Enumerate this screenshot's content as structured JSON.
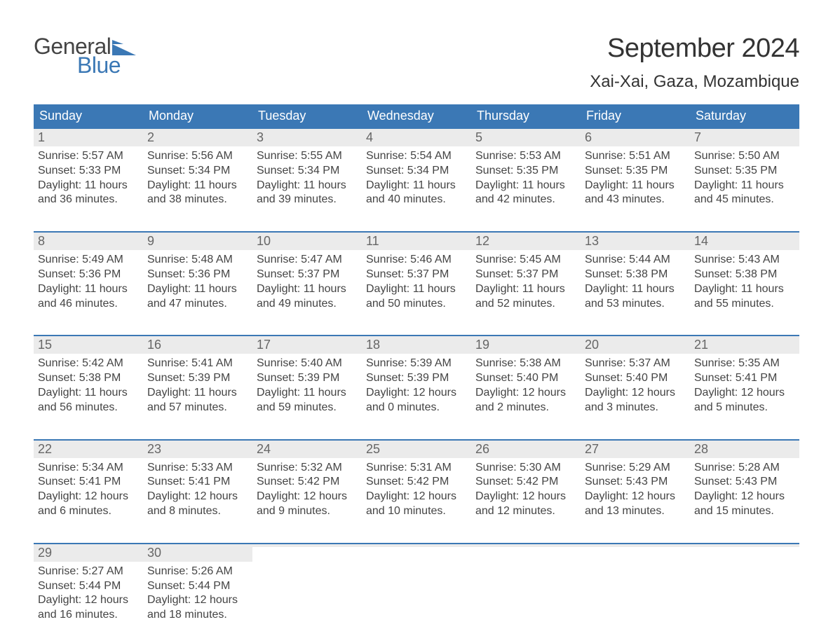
{
  "logo": {
    "text1": "General",
    "text2": "Blue",
    "flag_color": "#3b78b5"
  },
  "title": "September 2024",
  "location": "Xai-Xai, Gaza, Mozambique",
  "colors": {
    "header_bg": "#3b78b5",
    "header_text": "#ffffff",
    "strip_bg": "#ebebeb",
    "text": "#444444",
    "rule": "#3b78b5",
    "background": "#ffffff"
  },
  "typography": {
    "title_fontsize": 38,
    "location_fontsize": 24,
    "dow_fontsize": 18,
    "daynum_fontsize": 18,
    "body_fontsize": 16
  },
  "layout": {
    "columns": 7,
    "rows": 5
  },
  "days_of_week": [
    "Sunday",
    "Monday",
    "Tuesday",
    "Wednesday",
    "Thursday",
    "Friday",
    "Saturday"
  ],
  "weeks": [
    [
      {
        "n": "1",
        "sunrise": "Sunrise: 5:57 AM",
        "sunset": "Sunset: 5:33 PM",
        "daylight": "Daylight: 11 hours and 36 minutes."
      },
      {
        "n": "2",
        "sunrise": "Sunrise: 5:56 AM",
        "sunset": "Sunset: 5:34 PM",
        "daylight": "Daylight: 11 hours and 38 minutes."
      },
      {
        "n": "3",
        "sunrise": "Sunrise: 5:55 AM",
        "sunset": "Sunset: 5:34 PM",
        "daylight": "Daylight: 11 hours and 39 minutes."
      },
      {
        "n": "4",
        "sunrise": "Sunrise: 5:54 AM",
        "sunset": "Sunset: 5:34 PM",
        "daylight": "Daylight: 11 hours and 40 minutes."
      },
      {
        "n": "5",
        "sunrise": "Sunrise: 5:53 AM",
        "sunset": "Sunset: 5:35 PM",
        "daylight": "Daylight: 11 hours and 42 minutes."
      },
      {
        "n": "6",
        "sunrise": "Sunrise: 5:51 AM",
        "sunset": "Sunset: 5:35 PM",
        "daylight": "Daylight: 11 hours and 43 minutes."
      },
      {
        "n": "7",
        "sunrise": "Sunrise: 5:50 AM",
        "sunset": "Sunset: 5:35 PM",
        "daylight": "Daylight: 11 hours and 45 minutes."
      }
    ],
    [
      {
        "n": "8",
        "sunrise": "Sunrise: 5:49 AM",
        "sunset": "Sunset: 5:36 PM",
        "daylight": "Daylight: 11 hours and 46 minutes."
      },
      {
        "n": "9",
        "sunrise": "Sunrise: 5:48 AM",
        "sunset": "Sunset: 5:36 PM",
        "daylight": "Daylight: 11 hours and 47 minutes."
      },
      {
        "n": "10",
        "sunrise": "Sunrise: 5:47 AM",
        "sunset": "Sunset: 5:37 PM",
        "daylight": "Daylight: 11 hours and 49 minutes."
      },
      {
        "n": "11",
        "sunrise": "Sunrise: 5:46 AM",
        "sunset": "Sunset: 5:37 PM",
        "daylight": "Daylight: 11 hours and 50 minutes."
      },
      {
        "n": "12",
        "sunrise": "Sunrise: 5:45 AM",
        "sunset": "Sunset: 5:37 PM",
        "daylight": "Daylight: 11 hours and 52 minutes."
      },
      {
        "n": "13",
        "sunrise": "Sunrise: 5:44 AM",
        "sunset": "Sunset: 5:38 PM",
        "daylight": "Daylight: 11 hours and 53 minutes."
      },
      {
        "n": "14",
        "sunrise": "Sunrise: 5:43 AM",
        "sunset": "Sunset: 5:38 PM",
        "daylight": "Daylight: 11 hours and 55 minutes."
      }
    ],
    [
      {
        "n": "15",
        "sunrise": "Sunrise: 5:42 AM",
        "sunset": "Sunset: 5:38 PM",
        "daylight": "Daylight: 11 hours and 56 minutes."
      },
      {
        "n": "16",
        "sunrise": "Sunrise: 5:41 AM",
        "sunset": "Sunset: 5:39 PM",
        "daylight": "Daylight: 11 hours and 57 minutes."
      },
      {
        "n": "17",
        "sunrise": "Sunrise: 5:40 AM",
        "sunset": "Sunset: 5:39 PM",
        "daylight": "Daylight: 11 hours and 59 minutes."
      },
      {
        "n": "18",
        "sunrise": "Sunrise: 5:39 AM",
        "sunset": "Sunset: 5:39 PM",
        "daylight": "Daylight: 12 hours and 0 minutes."
      },
      {
        "n": "19",
        "sunrise": "Sunrise: 5:38 AM",
        "sunset": "Sunset: 5:40 PM",
        "daylight": "Daylight: 12 hours and 2 minutes."
      },
      {
        "n": "20",
        "sunrise": "Sunrise: 5:37 AM",
        "sunset": "Sunset: 5:40 PM",
        "daylight": "Daylight: 12 hours and 3 minutes."
      },
      {
        "n": "21",
        "sunrise": "Sunrise: 5:35 AM",
        "sunset": "Sunset: 5:41 PM",
        "daylight": "Daylight: 12 hours and 5 minutes."
      }
    ],
    [
      {
        "n": "22",
        "sunrise": "Sunrise: 5:34 AM",
        "sunset": "Sunset: 5:41 PM",
        "daylight": "Daylight: 12 hours and 6 minutes."
      },
      {
        "n": "23",
        "sunrise": "Sunrise: 5:33 AM",
        "sunset": "Sunset: 5:41 PM",
        "daylight": "Daylight: 12 hours and 8 minutes."
      },
      {
        "n": "24",
        "sunrise": "Sunrise: 5:32 AM",
        "sunset": "Sunset: 5:42 PM",
        "daylight": "Daylight: 12 hours and 9 minutes."
      },
      {
        "n": "25",
        "sunrise": "Sunrise: 5:31 AM",
        "sunset": "Sunset: 5:42 PM",
        "daylight": "Daylight: 12 hours and 10 minutes."
      },
      {
        "n": "26",
        "sunrise": "Sunrise: 5:30 AM",
        "sunset": "Sunset: 5:42 PM",
        "daylight": "Daylight: 12 hours and 12 minutes."
      },
      {
        "n": "27",
        "sunrise": "Sunrise: 5:29 AM",
        "sunset": "Sunset: 5:43 PM",
        "daylight": "Daylight: 12 hours and 13 minutes."
      },
      {
        "n": "28",
        "sunrise": "Sunrise: 5:28 AM",
        "sunset": "Sunset: 5:43 PM",
        "daylight": "Daylight: 12 hours and 15 minutes."
      }
    ],
    [
      {
        "n": "29",
        "sunrise": "Sunrise: 5:27 AM",
        "sunset": "Sunset: 5:44 PM",
        "daylight": "Daylight: 12 hours and 16 minutes."
      },
      {
        "n": "30",
        "sunrise": "Sunrise: 5:26 AM",
        "sunset": "Sunset: 5:44 PM",
        "daylight": "Daylight: 12 hours and 18 minutes."
      },
      {
        "empty": true
      },
      {
        "empty": true
      },
      {
        "empty": true
      },
      {
        "empty": true
      },
      {
        "empty": true
      }
    ]
  ]
}
